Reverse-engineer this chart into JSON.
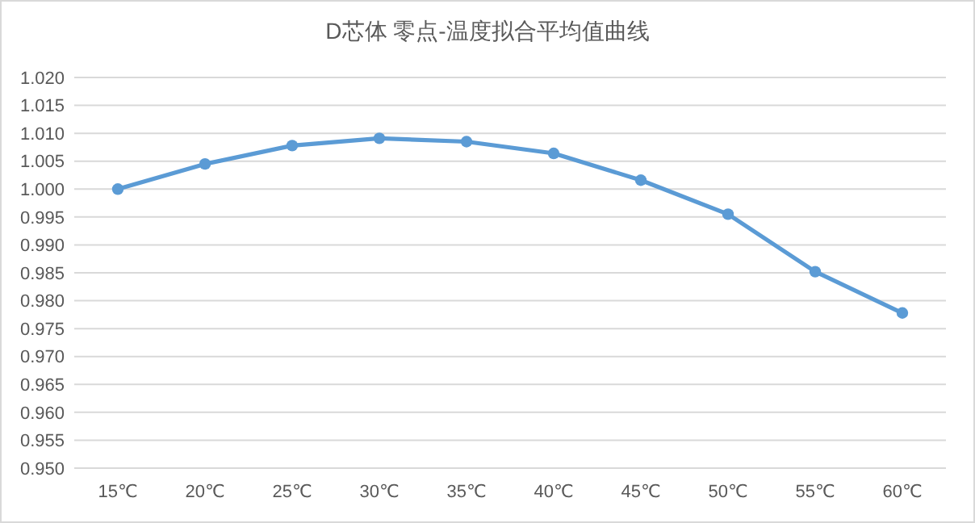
{
  "chart_data": {
    "type": "line",
    "title": "D芯体  零点-温度拟合平均值曲线",
    "categories": [
      "15℃",
      "20℃",
      "25℃",
      "30℃",
      "35℃",
      "40℃",
      "45℃",
      "50℃",
      "55℃",
      "60℃"
    ],
    "series": [
      {
        "color": "#5b9bd5",
        "values": [
          1.0,
          1.0045,
          1.0078,
          1.0091,
          1.0085,
          1.0064,
          1.0016,
          0.9955,
          0.9852,
          0.9778
        ]
      }
    ],
    "ylim": [
      0.95,
      1.02
    ],
    "yticks": [
      {
        "value": 0.95,
        "label": "0.950"
      },
      {
        "value": 0.955,
        "label": "0.955"
      },
      {
        "value": 0.96,
        "label": "0.960"
      },
      {
        "value": 0.965,
        "label": "0.965"
      },
      {
        "value": 0.97,
        "label": "0.970"
      },
      {
        "value": 0.975,
        "label": "0.975"
      },
      {
        "value": 0.98,
        "label": "0.980"
      },
      {
        "value": 0.985,
        "label": "0.985"
      },
      {
        "value": 0.99,
        "label": "0.990"
      },
      {
        "value": 0.995,
        "label": "0.995"
      },
      {
        "value": 1.0,
        "label": "1.000"
      },
      {
        "value": 1.005,
        "label": "1.005"
      },
      {
        "value": 1.01,
        "label": "1.010"
      },
      {
        "value": 1.015,
        "label": "1.015"
      },
      {
        "value": 1.02,
        "label": "1.020"
      }
    ],
    "grid": "y",
    "marker": "circle",
    "line_style": "solid"
  }
}
